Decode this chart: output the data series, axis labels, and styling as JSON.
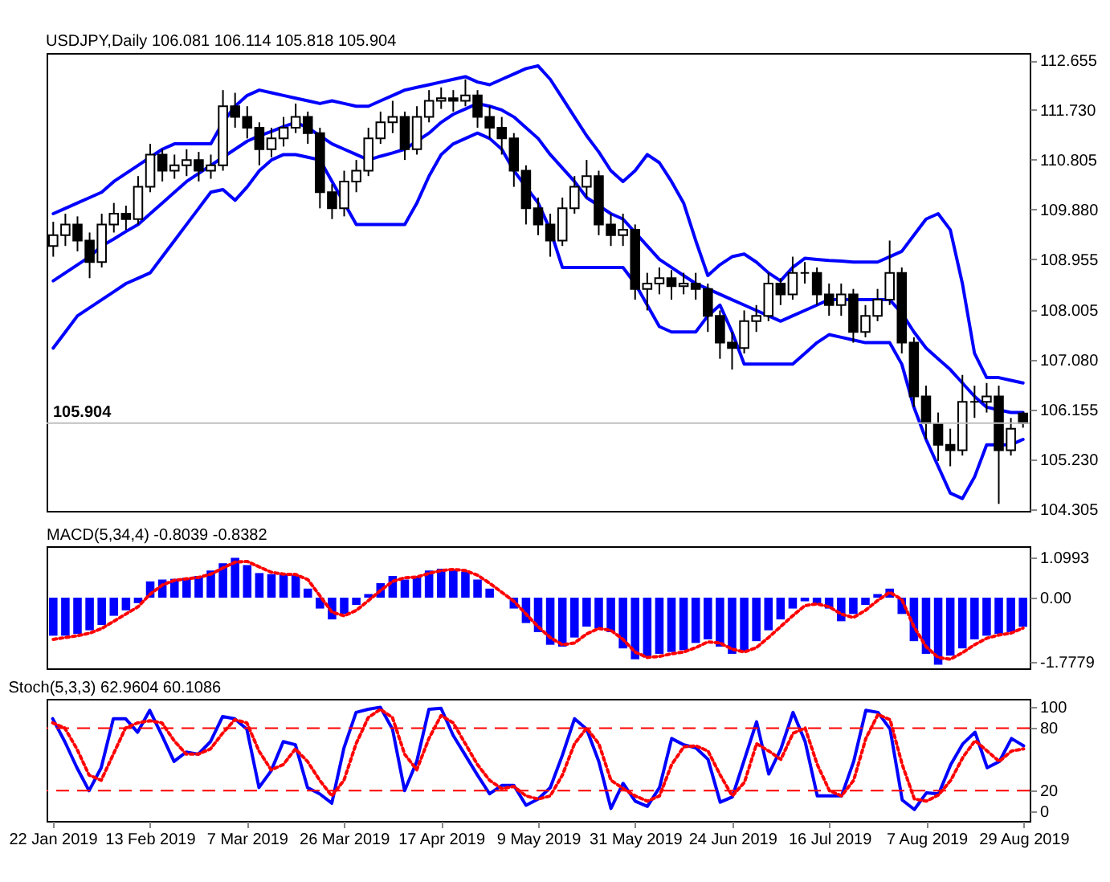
{
  "chart_data": [
    {
      "type": "candlestick",
      "title": "USDJPY,Daily 106.081 106.114 105.818 105.904",
      "categories": [
        null,
        null,
        null,
        null,
        null,
        null,
        null,
        null,
        null,
        null,
        null,
        null,
        null,
        null,
        null,
        null,
        null,
        null,
        null,
        null,
        null,
        null,
        null,
        null,
        null,
        null,
        null,
        null,
        null,
        null,
        null,
        null,
        null,
        null,
        null,
        null,
        null,
        null,
        null,
        null,
        null,
        null,
        null,
        null,
        null,
        null,
        null,
        null,
        null,
        null,
        null,
        null,
        null,
        null,
        null,
        null,
        null,
        null,
        null,
        null,
        null,
        null,
        null,
        null,
        null,
        null,
        null,
        null,
        null,
        null,
        null,
        null,
        null,
        null,
        null,
        null,
        null,
        null,
        null,
        null,
        null
      ],
      "ohlc": [
        [
          109.2,
          109.65,
          109.0,
          109.4
        ],
        [
          109.4,
          109.8,
          109.2,
          109.6
        ],
        [
          109.6,
          109.75,
          109.1,
          109.3
        ],
        [
          109.3,
          109.45,
          108.6,
          108.9
        ],
        [
          108.9,
          109.8,
          108.8,
          109.6
        ],
        [
          109.6,
          110.0,
          109.45,
          109.8
        ],
        [
          109.8,
          109.95,
          109.5,
          109.7
        ],
        [
          109.7,
          110.5,
          109.6,
          110.3
        ],
        [
          110.3,
          111.1,
          110.2,
          110.9
        ],
        [
          110.9,
          111.0,
          110.4,
          110.6
        ],
        [
          110.6,
          110.9,
          110.45,
          110.7
        ],
        [
          110.7,
          111.0,
          110.5,
          110.8
        ],
        [
          110.8,
          110.95,
          110.4,
          110.6
        ],
        [
          110.6,
          110.9,
          110.45,
          110.7
        ],
        [
          110.7,
          112.1,
          110.6,
          111.8
        ],
        [
          111.8,
          112.05,
          111.4,
          111.6
        ],
        [
          111.6,
          111.8,
          111.2,
          111.4
        ],
        [
          111.4,
          111.5,
          110.7,
          111.0
        ],
        [
          111.0,
          111.4,
          110.85,
          111.2
        ],
        [
          111.2,
          111.6,
          111.05,
          111.4
        ],
        [
          111.4,
          111.85,
          111.3,
          111.6
        ],
        [
          111.6,
          111.7,
          111.1,
          111.3
        ],
        [
          111.3,
          111.4,
          109.9,
          110.2
        ],
        [
          110.2,
          110.35,
          109.7,
          109.9
        ],
        [
          109.9,
          110.6,
          109.75,
          110.4
        ],
        [
          110.4,
          110.8,
          110.2,
          110.6
        ],
        [
          110.6,
          111.4,
          110.5,
          111.2
        ],
        [
          111.2,
          111.7,
          111.1,
          111.5
        ],
        [
          111.5,
          111.9,
          111.3,
          111.6
        ],
        [
          111.6,
          111.7,
          110.8,
          111.0
        ],
        [
          111.0,
          111.8,
          110.9,
          111.6
        ],
        [
          111.6,
          112.1,
          111.5,
          111.9
        ],
        [
          111.9,
          112.15,
          111.75,
          111.95
        ],
        [
          111.95,
          112.1,
          111.7,
          111.9
        ],
        [
          111.9,
          112.3,
          111.8,
          112.0
        ],
        [
          112.0,
          112.1,
          111.4,
          111.6
        ],
        [
          111.6,
          111.8,
          111.2,
          111.4
        ],
        [
          111.4,
          111.6,
          110.9,
          111.2
        ],
        [
          111.2,
          111.3,
          110.3,
          110.6
        ],
        [
          110.6,
          110.7,
          109.6,
          109.9
        ],
        [
          109.9,
          110.1,
          109.4,
          109.6
        ],
        [
          109.6,
          109.8,
          109.0,
          109.3
        ],
        [
          109.3,
          110.1,
          109.2,
          109.9
        ],
        [
          109.9,
          110.5,
          109.8,
          110.3
        ],
        [
          110.3,
          110.8,
          110.1,
          110.5
        ],
        [
          110.5,
          110.6,
          109.4,
          109.6
        ],
        [
          109.6,
          109.8,
          109.2,
          109.4
        ],
        [
          109.4,
          109.8,
          109.2,
          109.5
        ],
        [
          109.5,
          109.6,
          108.2,
          108.4
        ],
        [
          108.4,
          108.7,
          108.0,
          108.5
        ],
        [
          108.5,
          108.8,
          108.3,
          108.6
        ],
        [
          108.6,
          108.75,
          108.2,
          108.45
        ],
        [
          108.45,
          108.7,
          108.3,
          108.5
        ],
        [
          108.5,
          108.7,
          108.2,
          108.4
        ],
        [
          108.4,
          108.5,
          107.6,
          107.9
        ],
        [
          107.9,
          108.0,
          107.1,
          107.4
        ],
        [
          107.4,
          107.6,
          106.9,
          107.3
        ],
        [
          107.3,
          108.0,
          107.2,
          107.8
        ],
        [
          107.8,
          108.1,
          107.6,
          107.9
        ],
        [
          107.9,
          108.7,
          107.8,
          108.5
        ],
        [
          108.5,
          108.6,
          108.1,
          108.3
        ],
        [
          108.3,
          109.0,
          108.2,
          108.7
        ],
        [
          108.7,
          108.9,
          108.5,
          108.7
        ],
        [
          108.7,
          108.8,
          108.1,
          108.3
        ],
        [
          108.3,
          108.5,
          107.9,
          108.1
        ],
        [
          108.1,
          108.5,
          107.9,
          108.3
        ],
        [
          108.3,
          108.4,
          107.4,
          107.6
        ],
        [
          107.6,
          108.1,
          107.5,
          107.9
        ],
        [
          107.9,
          108.4,
          107.8,
          108.2
        ],
        [
          108.2,
          109.3,
          108.1,
          108.7
        ],
        [
          108.7,
          108.8,
          107.2,
          107.4
        ],
        [
          107.4,
          107.5,
          106.2,
          106.4
        ],
        [
          106.4,
          106.6,
          105.6,
          105.9
        ],
        [
          105.9,
          106.1,
          105.2,
          105.5
        ],
        [
          105.5,
          105.8,
          105.1,
          105.4
        ],
        [
          105.4,
          106.8,
          105.3,
          106.3
        ],
        [
          106.3,
          106.6,
          106.0,
          106.3
        ],
        [
          106.3,
          106.65,
          106.1,
          106.4
        ],
        [
          106.4,
          106.6,
          104.4,
          105.4
        ],
        [
          105.4,
          106.0,
          105.3,
          105.8
        ],
        [
          106.081,
          106.114,
          105.818,
          105.904
        ]
      ],
      "series": [
        {
          "type": "line",
          "color": "#0000ff",
          "values": [
            109.8,
            109.9,
            110.0,
            110.1,
            110.2,
            110.4,
            110.55,
            110.7,
            110.85,
            111.0,
            111.1,
            111.1,
            111.1,
            111.1,
            111.5,
            111.8,
            112.0,
            112.1,
            112.05,
            112.0,
            111.95,
            111.9,
            111.85,
            111.9,
            111.85,
            111.8,
            111.8,
            111.9,
            112.0,
            112.1,
            112.15,
            112.2,
            112.25,
            112.3,
            112.35,
            112.25,
            112.2,
            112.3,
            112.4,
            112.5,
            112.55,
            112.3,
            111.95,
            111.6,
            111.25,
            110.95,
            110.6,
            110.4,
            110.6,
            110.9,
            110.75,
            110.4,
            110.0,
            109.3,
            108.65,
            108.85,
            109.0,
            109.05,
            108.9,
            108.7,
            108.55,
            108.8,
            108.97,
            108.95,
            108.93,
            108.92,
            108.9,
            108.9,
            108.9,
            109.0,
            109.1,
            109.4,
            109.7,
            109.8,
            109.5,
            108.5,
            107.2,
            106.75,
            106.75,
            106.7,
            106.65
          ]
        },
        {
          "type": "line",
          "color": "#0000ff",
          "values": [
            108.55,
            108.7,
            108.85,
            109.0,
            109.2,
            109.33,
            109.47,
            109.6,
            109.8,
            110.0,
            110.2,
            110.4,
            110.55,
            110.7,
            110.85,
            111.0,
            111.15,
            111.25,
            111.33,
            111.42,
            111.5,
            111.4,
            111.25,
            111.1,
            111.0,
            110.9,
            110.8,
            110.87,
            110.93,
            111.0,
            111.15,
            111.3,
            111.5,
            111.65,
            111.75,
            111.85,
            111.8,
            111.73,
            111.6,
            111.4,
            111.2,
            110.9,
            110.65,
            110.4,
            110.1,
            109.95,
            109.8,
            109.7,
            109.45,
            109.2,
            108.95,
            108.8,
            108.65,
            108.5,
            108.4,
            108.3,
            108.2,
            108.1,
            108.0,
            107.9,
            107.8,
            107.9,
            108.0,
            108.1,
            108.2,
            108.2,
            108.2,
            108.2,
            108.2,
            108.2,
            107.95,
            107.6,
            107.3,
            107.1,
            106.9,
            106.65,
            106.4,
            106.2,
            106.15,
            106.1,
            106.1
          ]
        },
        {
          "type": "line",
          "color": "#0000ff",
          "values": [
            107.3,
            107.6,
            107.9,
            108.05,
            108.2,
            108.35,
            108.5,
            108.6,
            108.7,
            109.0,
            109.3,
            109.6,
            109.9,
            110.2,
            110.25,
            110.05,
            110.3,
            110.6,
            110.8,
            110.9,
            110.9,
            110.85,
            110.8,
            110.4,
            110.0,
            109.6,
            109.6,
            109.6,
            109.6,
            109.6,
            110.0,
            110.5,
            110.9,
            111.1,
            111.2,
            111.3,
            111.2,
            111.0,
            110.6,
            110.3,
            110.0,
            109.5,
            108.8,
            108.8,
            108.8,
            108.8,
            108.8,
            108.8,
            108.5,
            108.1,
            107.7,
            107.6,
            107.6,
            107.6,
            107.9,
            108.1,
            107.6,
            107.0,
            107.0,
            107.0,
            107.0,
            107.0,
            107.2,
            107.4,
            107.55,
            107.5,
            107.45,
            107.4,
            107.4,
            107.4,
            107.0,
            106.2,
            105.6,
            105.1,
            104.6,
            104.5,
            104.9,
            105.5,
            105.5,
            105.5,
            105.6
          ]
        }
      ],
      "ylim": [
        104.27,
        112.79
      ],
      "yticks": [
        104.305,
        {
          "value": 105.23,
          "label": "105.230"
        },
        106.155,
        {
          "value": 107.08,
          "label": "107.080"
        },
        108.005,
        108.955,
        {
          "value": 109.88,
          "label": "109.880"
        },
        110.805,
        {
          "value": 111.73,
          "label": "111.730"
        },
        112.655
      ],
      "ref_lines": [
        {
          "axis": "y",
          "value": 105.904,
          "label": "105.904",
          "color": "#c0c0c0"
        }
      ],
      "tick_labels": "y"
    },
    {
      "type": "bar",
      "title": "MACD(5,34,4) -0.8039 -0.8382",
      "categories": [
        null,
        null,
        null,
        null,
        null,
        null,
        null,
        null,
        null,
        null,
        null,
        null,
        null,
        null,
        null,
        null,
        null,
        null,
        null,
        null,
        null,
        null,
        null,
        null,
        null,
        null,
        null,
        null,
        null,
        null,
        null,
        null,
        null,
        null,
        null,
        null,
        null,
        null,
        null,
        null,
        null,
        null,
        null,
        null,
        null,
        null,
        null,
        null,
        null,
        null,
        null,
        null,
        null,
        null,
        null,
        null,
        null,
        null,
        null,
        null,
        null,
        null,
        null,
        null,
        null,
        null,
        null,
        null,
        null,
        null,
        null,
        null,
        null,
        null,
        null,
        null,
        null,
        null,
        null,
        null,
        null
      ],
      "series": [
        {
          "type": "bar",
          "color": "#0000ff",
          "values": [
            -1.05,
            -1.05,
            -1.0,
            -0.9,
            -0.75,
            -0.5,
            -0.35,
            -0.15,
            0.45,
            0.5,
            0.52,
            0.55,
            0.6,
            0.75,
            0.95,
            1.1,
            0.9,
            0.68,
            0.65,
            0.65,
            0.62,
            0.25,
            -0.3,
            -0.6,
            -0.45,
            -0.2,
            0.1,
            0.4,
            0.6,
            0.5,
            0.6,
            0.75,
            0.8,
            0.78,
            0.72,
            0.5,
            0.25,
            0.0,
            -0.3,
            -0.7,
            -0.95,
            -1.3,
            -1.35,
            -1.1,
            -0.8,
            -0.85,
            -0.95,
            -1.4,
            -1.7,
            -1.65,
            -1.55,
            -1.5,
            -1.45,
            -1.25,
            -1.15,
            -1.35,
            -1.55,
            -1.5,
            -1.2,
            -0.9,
            -0.6,
            -0.3,
            -0.1,
            -0.2,
            -0.3,
            -0.65,
            -0.45,
            -0.2,
            0.1,
            0.25,
            -0.45,
            -1.2,
            -1.55,
            -1.85,
            -1.6,
            -1.4,
            -1.15,
            -1.05,
            -1.0,
            -0.95,
            -0.8039
          ]
        },
        {
          "type": "line",
          "color": "#ff0000",
          "line_style": "dotted",
          "values": [
            -1.15,
            -1.1,
            -1.05,
            -0.98,
            -0.85,
            -0.65,
            -0.45,
            -0.25,
            0.1,
            0.35,
            0.48,
            0.52,
            0.56,
            0.65,
            0.82,
            0.98,
            1.0,
            0.85,
            0.7,
            0.65,
            0.64,
            0.5,
            0.05,
            -0.4,
            -0.5,
            -0.35,
            -0.08,
            0.2,
            0.45,
            0.55,
            0.57,
            0.67,
            0.75,
            0.78,
            0.75,
            0.62,
            0.4,
            0.15,
            -0.1,
            -0.45,
            -0.8,
            -1.1,
            -1.3,
            -1.25,
            -1.0,
            -0.85,
            -0.9,
            -1.15,
            -1.5,
            -1.65,
            -1.62,
            -1.55,
            -1.5,
            -1.38,
            -1.22,
            -1.25,
            -1.42,
            -1.5,
            -1.38,
            -1.1,
            -0.8,
            -0.5,
            -0.22,
            -0.17,
            -0.25,
            -0.45,
            -0.55,
            -0.35,
            -0.08,
            0.15,
            -0.05,
            -0.8,
            -1.35,
            -1.65,
            -1.7,
            -1.52,
            -1.3,
            -1.12,
            -1.03,
            -0.98,
            -0.8382
          ]
        }
      ],
      "ylim": [
        -1.95,
        1.42
      ],
      "yticks": [
        -1.7779,
        {
          "value": 0,
          "label": "0.00"
        },
        1.0993
      ],
      "tick_labels": "y"
    },
    {
      "type": "line",
      "title": "Stoch(5,3,3) 62.9604 60.1086",
      "categories": [
        "22 Jan 2019",
        null,
        null,
        null,
        null,
        null,
        null,
        null,
        "13 Feb 2019",
        null,
        null,
        null,
        null,
        null,
        null,
        null,
        "7 Mar 2019",
        null,
        null,
        null,
        null,
        null,
        null,
        null,
        "26 Mar 2019",
        null,
        null,
        null,
        null,
        null,
        null,
        null,
        "17 Apr 2019",
        null,
        null,
        null,
        null,
        null,
        null,
        null,
        "9 May 2019",
        null,
        null,
        null,
        null,
        null,
        null,
        null,
        "31 May 2019",
        null,
        null,
        null,
        null,
        null,
        null,
        null,
        "24 Jun 2019",
        null,
        null,
        null,
        null,
        null,
        null,
        null,
        "16 Jul 2019",
        null,
        null,
        null,
        null,
        null,
        null,
        null,
        "7 Aug 2019",
        null,
        null,
        null,
        null,
        null,
        null,
        null,
        "29 Aug 2019"
      ],
      "series": [
        {
          "type": "line",
          "color": "#0000ff",
          "values": [
            89,
            67,
            42,
            20,
            42,
            89,
            89,
            76,
            97,
            73,
            48,
            57,
            55,
            67,
            91,
            89,
            79,
            23,
            39,
            67,
            64,
            23,
            17,
            8,
            61,
            95,
            98,
            100,
            79,
            20,
            48,
            98,
            99,
            73,
            54,
            35,
            17,
            25,
            25,
            6,
            12,
            23,
            54,
            89,
            79,
            48,
            3,
            27,
            10,
            5,
            23,
            70,
            64,
            61,
            50,
            9,
            14,
            50,
            86,
            36,
            60,
            95,
            67,
            15,
            15,
            15,
            48,
            97,
            95,
            79,
            11,
            2,
            18,
            17,
            45,
            65,
            76,
            42,
            48,
            70,
            62.9604
          ]
        },
        {
          "type": "line",
          "color": "#ff0000",
          "line_style": "dotted",
          "values": [
            85,
            80,
            60,
            35,
            30,
            55,
            80,
            85,
            87,
            85,
            68,
            55,
            55,
            60,
            75,
            88,
            85,
            58,
            40,
            45,
            60,
            48,
            30,
            15,
            30,
            65,
            90,
            98,
            90,
            55,
            40,
            70,
            92,
            85,
            65,
            45,
            30,
            22,
            24,
            15,
            12,
            15,
            35,
            65,
            80,
            65,
            30,
            22,
            15,
            10,
            15,
            45,
            62,
            63,
            58,
            35,
            15,
            28,
            65,
            58,
            50,
            75,
            80,
            45,
            20,
            15,
            30,
            70,
            93,
            88,
            45,
            12,
            10,
            16,
            30,
            52,
            68,
            58,
            48,
            58,
            60.1086
          ]
        }
      ],
      "ylim": [
        -9,
        108
      ],
      "yticks": [
        0,
        20,
        80,
        100
      ],
      "ref_lines": [
        {
          "axis": "y",
          "value": 80,
          "color": "#ff0000",
          "line_style": "dashed"
        },
        {
          "axis": "y",
          "value": 20,
          "color": "#ff0000",
          "line_style": "dashed"
        }
      ]
    }
  ]
}
